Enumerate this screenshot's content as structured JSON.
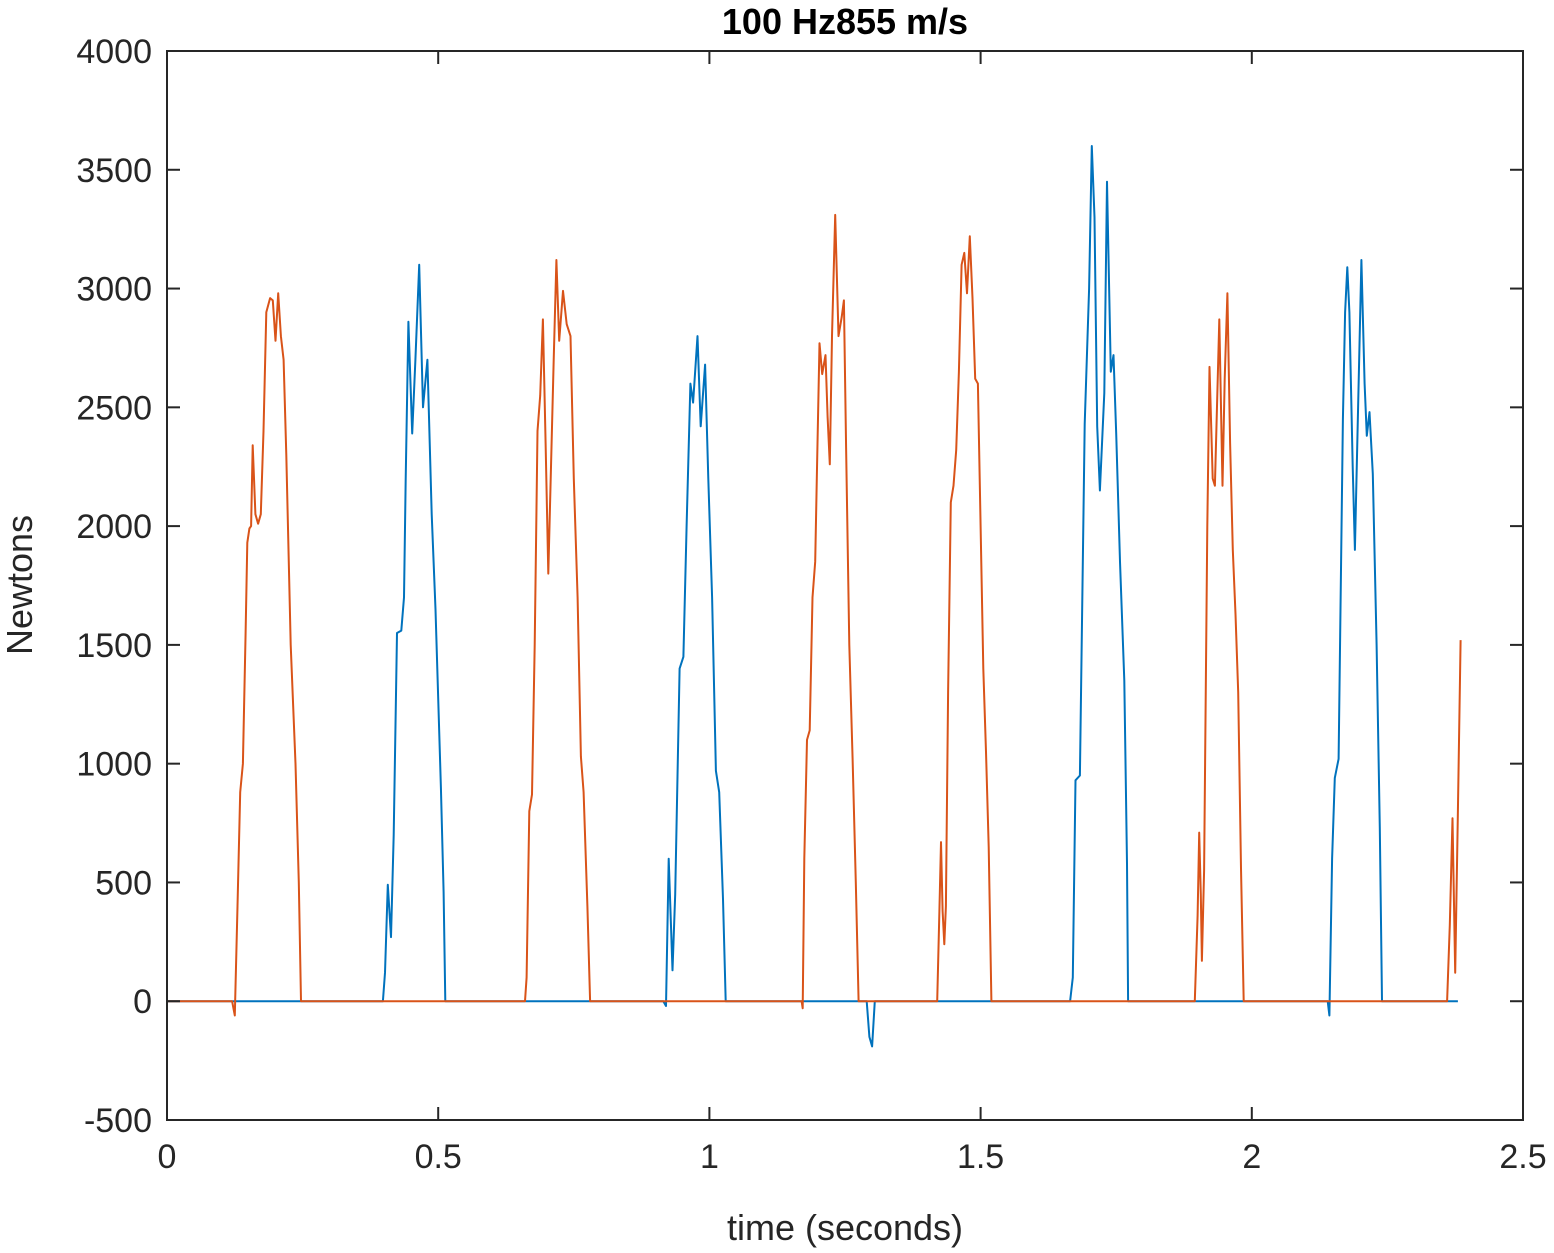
{
  "chart_data": {
    "type": "line",
    "title": "100 Hz855 m/s",
    "xlabel": "time (seconds)",
    "ylabel": "Newtons",
    "xlim": [
      0,
      2.5
    ],
    "ylim": [
      -500,
      4000
    ],
    "xticks": [
      0,
      0.5,
      1,
      1.5,
      2,
      2.5
    ],
    "xtick_labels": [
      "0",
      "0.5",
      "1",
      "1.5",
      "2",
      "2.5"
    ],
    "yticks": [
      -500,
      0,
      500,
      1000,
      1500,
      2000,
      2500,
      3000,
      3500,
      4000
    ],
    "ytick_labels": [
      "-500",
      "0",
      "500",
      "1000",
      "1500",
      "2000",
      "2500",
      "3000",
      "3500",
      "4000"
    ],
    "grid": false,
    "legend": "none",
    "series": [
      {
        "color": "#0072BD",
        "points": [
          [
            0.0,
            0
          ],
          [
            0.398,
            0
          ],
          [
            0.402,
            120
          ],
          [
            0.407,
            490
          ],
          [
            0.413,
            270
          ],
          [
            0.418,
            700
          ],
          [
            0.424,
            1550
          ],
          [
            0.432,
            1560
          ],
          [
            0.437,
            1700
          ],
          [
            0.44,
            2200
          ],
          [
            0.445,
            2860
          ],
          [
            0.452,
            2390
          ],
          [
            0.458,
            2700
          ],
          [
            0.465,
            3100
          ],
          [
            0.472,
            2500
          ],
          [
            0.48,
            2700
          ],
          [
            0.488,
            2050
          ],
          [
            0.495,
            1650
          ],
          [
            0.505,
            900
          ],
          [
            0.51,
            460
          ],
          [
            0.513,
            0
          ],
          [
            0.915,
            0
          ],
          [
            0.92,
            -20
          ],
          [
            0.925,
            600
          ],
          [
            0.932,
            130
          ],
          [
            0.937,
            450
          ],
          [
            0.945,
            1400
          ],
          [
            0.952,
            1450
          ],
          [
            0.958,
            2000
          ],
          [
            0.965,
            2600
          ],
          [
            0.97,
            2520
          ],
          [
            0.978,
            2800
          ],
          [
            0.984,
            2420
          ],
          [
            0.992,
            2680
          ],
          [
            0.998,
            2200
          ],
          [
            1.005,
            1700
          ],
          [
            1.012,
            970
          ],
          [
            1.018,
            880
          ],
          [
            1.025,
            430
          ],
          [
            1.03,
            0
          ],
          [
            1.29,
            0
          ],
          [
            1.295,
            -150
          ],
          [
            1.3,
            -190
          ],
          [
            1.305,
            0
          ],
          [
            1.665,
            0
          ],
          [
            1.67,
            100
          ],
          [
            1.675,
            930
          ],
          [
            1.683,
            950
          ],
          [
            1.692,
            2430
          ],
          [
            1.7,
            3000
          ],
          [
            1.705,
            3600
          ],
          [
            1.71,
            3300
          ],
          [
            1.715,
            2420
          ],
          [
            1.72,
            2150
          ],
          [
            1.728,
            2560
          ],
          [
            1.733,
            3450
          ],
          [
            1.74,
            2650
          ],
          [
            1.745,
            2720
          ],
          [
            1.75,
            2390
          ],
          [
            1.757,
            1850
          ],
          [
            1.765,
            1350
          ],
          [
            1.77,
            580
          ],
          [
            1.772,
            0
          ],
          [
            2.14,
            0
          ],
          [
            2.143,
            -60
          ],
          [
            2.148,
            600
          ],
          [
            2.153,
            940
          ],
          [
            2.16,
            1020
          ],
          [
            2.168,
            2450
          ],
          [
            2.172,
            2900
          ],
          [
            2.176,
            3090
          ],
          [
            2.18,
            2900
          ],
          [
            2.186,
            2250
          ],
          [
            2.19,
            1900
          ],
          [
            2.196,
            2500
          ],
          [
            2.202,
            3120
          ],
          [
            2.208,
            2600
          ],
          [
            2.212,
            2380
          ],
          [
            2.217,
            2480
          ],
          [
            2.223,
            2220
          ],
          [
            2.23,
            1500
          ],
          [
            2.236,
            730
          ],
          [
            2.24,
            0
          ],
          [
            2.38,
            0
          ]
        ]
      },
      {
        "color": "#D95319",
        "points": [
          [
            0.0,
            0
          ],
          [
            0.12,
            0
          ],
          [
            0.125,
            -60
          ],
          [
            0.13,
            400
          ],
          [
            0.135,
            880
          ],
          [
            0.14,
            1000
          ],
          [
            0.145,
            1550
          ],
          [
            0.148,
            1930
          ],
          [
            0.152,
            1990
          ],
          [
            0.155,
            2000
          ],
          [
            0.158,
            2340
          ],
          [
            0.163,
            2050
          ],
          [
            0.168,
            2010
          ],
          [
            0.173,
            2050
          ],
          [
            0.178,
            2400
          ],
          [
            0.183,
            2900
          ],
          [
            0.19,
            2960
          ],
          [
            0.195,
            2950
          ],
          [
            0.2,
            2780
          ],
          [
            0.205,
            2980
          ],
          [
            0.21,
            2800
          ],
          [
            0.215,
            2700
          ],
          [
            0.22,
            2300
          ],
          [
            0.228,
            1500
          ],
          [
            0.237,
            1000
          ],
          [
            0.243,
            500
          ],
          [
            0.247,
            0
          ],
          [
            0.66,
            0
          ],
          [
            0.663,
            100
          ],
          [
            0.668,
            800
          ],
          [
            0.673,
            870
          ],
          [
            0.678,
            1500
          ],
          [
            0.683,
            2400
          ],
          [
            0.688,
            2550
          ],
          [
            0.693,
            2870
          ],
          [
            0.698,
            2350
          ],
          [
            0.703,
            1800
          ],
          [
            0.708,
            2250
          ],
          [
            0.713,
            2700
          ],
          [
            0.718,
            3120
          ],
          [
            0.723,
            2780
          ],
          [
            0.73,
            2990
          ],
          [
            0.737,
            2850
          ],
          [
            0.744,
            2800
          ],
          [
            0.75,
            2200
          ],
          [
            0.757,
            1700
          ],
          [
            0.763,
            1030
          ],
          [
            0.768,
            880
          ],
          [
            0.775,
            400
          ],
          [
            0.78,
            0
          ],
          [
            1.17,
            0
          ],
          [
            1.172,
            -30
          ],
          [
            1.175,
            600
          ],
          [
            1.18,
            1100
          ],
          [
            1.185,
            1140
          ],
          [
            1.19,
            1700
          ],
          [
            1.195,
            1850
          ],
          [
            1.198,
            2200
          ],
          [
            1.203,
            2770
          ],
          [
            1.208,
            2640
          ],
          [
            1.214,
            2720
          ],
          [
            1.218,
            2460
          ],
          [
            1.222,
            2260
          ],
          [
            1.226,
            2800
          ],
          [
            1.232,
            3310
          ],
          [
            1.238,
            2800
          ],
          [
            1.244,
            2880
          ],
          [
            1.248,
            2950
          ],
          [
            1.252,
            2330
          ],
          [
            1.258,
            1500
          ],
          [
            1.264,
            1020
          ],
          [
            1.27,
            500
          ],
          [
            1.275,
            0
          ],
          [
            1.42,
            0
          ],
          [
            1.424,
            380
          ],
          [
            1.427,
            670
          ],
          [
            1.43,
            380
          ],
          [
            1.433,
            240
          ],
          [
            1.436,
            400
          ],
          [
            1.44,
            1300
          ],
          [
            1.445,
            2100
          ],
          [
            1.45,
            2170
          ],
          [
            1.455,
            2320
          ],
          [
            1.46,
            2650
          ],
          [
            1.465,
            3100
          ],
          [
            1.47,
            3150
          ],
          [
            1.475,
            2980
          ],
          [
            1.48,
            3220
          ],
          [
            1.485,
            2960
          ],
          [
            1.49,
            2620
          ],
          [
            1.495,
            2600
          ],
          [
            1.5,
            2000
          ],
          [
            1.505,
            1400
          ],
          [
            1.51,
            1050
          ],
          [
            1.515,
            650
          ],
          [
            1.52,
            0
          ],
          [
            1.895,
            0
          ],
          [
            1.9,
            360
          ],
          [
            1.903,
            710
          ],
          [
            1.906,
            450
          ],
          [
            1.908,
            170
          ],
          [
            1.912,
            550
          ],
          [
            1.918,
            2000
          ],
          [
            1.922,
            2670
          ],
          [
            1.928,
            2200
          ],
          [
            1.932,
            2170
          ],
          [
            1.94,
            2870
          ],
          [
            1.946,
            2170
          ],
          [
            1.95,
            2620
          ],
          [
            1.955,
            2980
          ],
          [
            1.96,
            2350
          ],
          [
            1.965,
            1900
          ],
          [
            1.97,
            1630
          ],
          [
            1.975,
            1300
          ],
          [
            1.98,
            560
          ],
          [
            1.985,
            0
          ],
          [
            2.36,
            0
          ],
          [
            2.365,
            320
          ],
          [
            2.37,
            770
          ],
          [
            2.375,
            120
          ],
          [
            2.38,
            800
          ],
          [
            2.385,
            1520
          ]
        ]
      }
    ]
  }
}
